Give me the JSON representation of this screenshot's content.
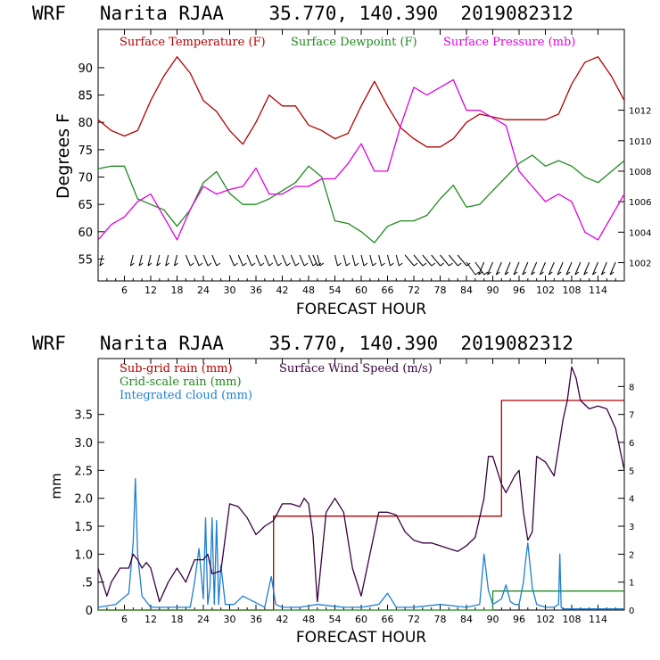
{
  "colors": {
    "temperature": "#b00000",
    "dewpoint": "#1f8a1f",
    "pressure": "#e000e0",
    "wind": "#3a0040",
    "subgrid": "#b00000",
    "gridscale": "#1f8a1f",
    "cloud": "#1e7fd0",
    "axis": "#000000"
  },
  "chart_data": [
    {
      "type": "line",
      "title": "WRF   Narita RJAA    35.770, 140.390  2019082312",
      "xlabel": "FORECAST HOUR",
      "ylabel": "Degrees F",
      "xlim": [
        0,
        120
      ],
      "ylim": [
        51,
        97
      ],
      "ylim_right": [
        1000.8,
        1017.3
      ],
      "x_ticks": [
        6,
        12,
        18,
        24,
        30,
        36,
        42,
        48,
        54,
        60,
        66,
        72,
        78,
        84,
        90,
        96,
        102,
        108,
        114
      ],
      "x_tick_labels": [
        "6",
        "12",
        "18",
        "24",
        "30",
        "36",
        "42",
        "48",
        "54",
        "60",
        "66",
        "72",
        "78",
        "84",
        "90",
        "96",
        "102",
        "108",
        "114"
      ],
      "y_ticks": [
        55,
        60,
        65,
        70,
        75,
        80,
        85,
        90
      ],
      "y_tick_labels": [
        "55",
        "60",
        "65",
        "70",
        "75",
        "80",
        "85",
        "90"
      ],
      "y2_ticks": [
        1002,
        1004,
        1006,
        1008,
        1010,
        1012
      ],
      "y2_tick_labels": [
        "1002",
        "1004",
        "1006",
        "1008",
        "1010",
        "1012"
      ],
      "legend": [
        "Surface Temperature (F)",
        "Surface Dewpoint (F)",
        "Surface Pressure (mb)"
      ],
      "series": [
        {
          "name": "Surface Temperature (F)",
          "axis": "left",
          "x": [
            0,
            3,
            6,
            9,
            12,
            15,
            18,
            21,
            24,
            27,
            30,
            33,
            36,
            39,
            42,
            45,
            48,
            51,
            54,
            57,
            60,
            63,
            66,
            69,
            72,
            75,
            78,
            81,
            84,
            87,
            90,
            93,
            96,
            99,
            102,
            105,
            108,
            111,
            114,
            117,
            120
          ],
          "values": [
            80.5,
            78.5,
            77.5,
            78.5,
            84,
            88.5,
            92,
            89,
            84,
            82,
            78.5,
            76,
            80,
            85,
            83,
            83,
            79.5,
            78.5,
            77,
            78,
            83,
            87.5,
            83,
            79,
            77,
            75.5,
            75.5,
            77,
            80,
            81.5,
            81,
            80.5,
            80.5,
            80.5,
            80.5,
            81.5,
            87,
            91,
            92,
            88.5,
            84
          ]
        },
        {
          "name": "Surface Dewpoint (F)",
          "axis": "left",
          "x": [
            0,
            3,
            6,
            9,
            12,
            15,
            18,
            21,
            24,
            27,
            30,
            33,
            36,
            39,
            42,
            45,
            48,
            51,
            54,
            57,
            60,
            63,
            66,
            69,
            72,
            75,
            78,
            81,
            84,
            87,
            90,
            93,
            96,
            99,
            102,
            105,
            108,
            111,
            114,
            117,
            120
          ],
          "values": [
            71.5,
            72,
            72,
            66,
            65,
            64,
            61,
            64,
            69,
            71,
            67,
            65,
            65,
            66,
            67.5,
            69,
            72,
            70,
            62,
            61.5,
            60,
            58,
            61,
            62,
            62,
            63,
            66,
            68.5,
            64.5,
            65,
            67.5,
            70,
            72.5,
            74,
            72,
            73,
            72,
            70,
            69,
            71,
            73
          ]
        },
        {
          "name": "Surface Pressure (mb)",
          "axis": "right",
          "x": [
            0,
            3,
            6,
            9,
            12,
            15,
            18,
            21,
            24,
            27,
            30,
            33,
            36,
            39,
            42,
            45,
            48,
            51,
            54,
            57,
            60,
            63,
            66,
            69,
            72,
            75,
            78,
            81,
            84,
            87,
            90,
            93,
            96,
            99,
            102,
            105,
            108,
            111,
            114,
            117,
            120
          ],
          "values": [
            1003.5,
            1004.5,
            1005,
            1006,
            1006.5,
            1005,
            1003.5,
            1005.5,
            1007,
            1006.5,
            1006.8,
            1007,
            1008.2,
            1006.5,
            1006.5,
            1007,
            1007,
            1007.5,
            1007.5,
            1008.5,
            1009.8,
            1008,
            1008,
            1011,
            1013.5,
            1013,
            1013.5,
            1014,
            1012,
            1012,
            1011.5,
            1011,
            1008,
            1007,
            1006,
            1006.5,
            1006,
            1004,
            1003.5,
            1005,
            1006.5
          ]
        }
      ],
      "wind_barbs_hours": [
        1,
        8,
        10,
        12,
        14,
        16,
        18,
        20,
        22,
        24,
        26,
        30,
        32,
        34,
        36,
        38,
        40,
        42,
        44,
        46,
        48,
        49,
        50,
        54,
        56,
        58,
        60,
        62,
        64,
        66,
        68,
        70,
        72,
        74,
        76,
        78,
        80,
        82,
        84,
        86,
        88,
        90,
        92,
        94,
        96,
        98,
        100,
        102,
        104,
        106,
        108,
        110,
        112,
        114,
        116,
        118
      ]
    },
    {
      "type": "line",
      "title": "WRF   Narita RJAA    35.770, 140.390  2019082312",
      "xlabel": "FORECAST HOUR",
      "ylabel": "mm",
      "xlim": [
        0,
        120
      ],
      "ylim": [
        0,
        4.5
      ],
      "ylim_right": [
        0,
        9
      ],
      "x_ticks": [
        6,
        12,
        18,
        24,
        30,
        36,
        42,
        48,
        54,
        60,
        66,
        72,
        78,
        84,
        90,
        96,
        102,
        108,
        114
      ],
      "x_tick_labels": [
        "6",
        "12",
        "18",
        "24",
        "30",
        "36",
        "42",
        "48",
        "54",
        "60",
        "66",
        "72",
        "78",
        "84",
        "90",
        "96",
        "102",
        "108",
        "114"
      ],
      "y_ticks": [
        0,
        0.5,
        1,
        1.5,
        2,
        2.5,
        3,
        3.5
      ],
      "y_tick_labels": [
        "0",
        ".5",
        "1.0",
        "1.5",
        "2.0",
        "2.5",
        "3.0",
        "3.5"
      ],
      "y2_ticks": [
        0,
        1,
        2,
        3,
        4,
        5,
        6,
        7,
        8
      ],
      "y2_tick_labels": [
        "0",
        "1",
        "2",
        "3",
        "4",
        "5",
        "6",
        "7",
        "8"
      ],
      "legend": [
        "Sub-grid rain (mm)",
        "Grid-scale rain (mm)",
        "Integrated cloud (mm)",
        "Surface Wind Speed (m/s)"
      ],
      "series": [
        {
          "name": "Sub-grid rain (mm)",
          "axis": "left",
          "step": true,
          "x": [
            0,
            40,
            40,
            92,
            92,
            120
          ],
          "values": [
            0,
            0,
            1.68,
            1.68,
            3.75,
            3.75
          ]
        },
        {
          "name": "Grid-scale rain (mm)",
          "axis": "left",
          "step": true,
          "x": [
            0,
            90,
            90,
            120
          ],
          "values": [
            0,
            0,
            0.34,
            0.34
          ]
        },
        {
          "name": "Integrated cloud (mm)",
          "axis": "left",
          "x": [
            0,
            4,
            7,
            8,
            8.5,
            9,
            10,
            12,
            16,
            21,
            22,
            23,
            24,
            24.5,
            25,
            25.5,
            26,
            26.5,
            27,
            27.5,
            28,
            29,
            31,
            33,
            38,
            39.5,
            40.5,
            42,
            46,
            50,
            56,
            60,
            64,
            66,
            68,
            72,
            78,
            84,
            87,
            88,
            89,
            90,
            92,
            93,
            94,
            95,
            96,
            97,
            97.5,
            98,
            99,
            100,
            102,
            104,
            105,
            105.3,
            105.6,
            106,
            120
          ],
          "values": [
            0.05,
            0.1,
            0.3,
            1.2,
            2.35,
            1.0,
            0.25,
            0.05,
            0.05,
            0.05,
            0.5,
            1.1,
            0.2,
            1.65,
            0.1,
            0.4,
            1.65,
            0.1,
            1.6,
            0.1,
            0.8,
            0.1,
            0.1,
            0.25,
            0.05,
            0.6,
            0.1,
            0.05,
            0.05,
            0.1,
            0.05,
            0.05,
            0.1,
            0.3,
            0.05,
            0.05,
            0.1,
            0.05,
            0.1,
            1.0,
            0.35,
            0.1,
            0.2,
            0.45,
            0.15,
            0.1,
            0.1,
            0.5,
            0.9,
            1.2,
            0.4,
            0.1,
            0.05,
            0.05,
            0.1,
            1.0,
            0.05,
            0.02,
            0.02
          ]
        },
        {
          "name": "Surface Wind Speed (m/s)",
          "axis": "right",
          "x": [
            0,
            2,
            3,
            5,
            7,
            8,
            9,
            10,
            11,
            12,
            14,
            16,
            18,
            20,
            22,
            24,
            25,
            26,
            28,
            30,
            32,
            34,
            36,
            38,
            40,
            42,
            44,
            46,
            47,
            48,
            49,
            50,
            52,
            54,
            56,
            58,
            60,
            62,
            64,
            66,
            68,
            70,
            72,
            74,
            76,
            78,
            80,
            82,
            84,
            86,
            88,
            89,
            90,
            91,
            92,
            93,
            94,
            95,
            96,
            97,
            98,
            99,
            100,
            102,
            104,
            105,
            106,
            107,
            108,
            109,
            110,
            112,
            114,
            116,
            118,
            120
          ],
          "values": [
            1.5,
            0.5,
            1,
            1.5,
            1.5,
            2,
            1.8,
            1.5,
            1.7,
            1.5,
            0.3,
            1,
            1.5,
            1,
            1.8,
            1.8,
            2,
            1.3,
            1.4,
            3.8,
            3.7,
            3.3,
            2.7,
            3,
            3.2,
            3.8,
            3.8,
            3.7,
            4,
            3.8,
            2.7,
            0.3,
            3.5,
            4,
            3.5,
            1.5,
            0.5,
            2,
            3.5,
            3.5,
            3.4,
            2.8,
            2.5,
            2.4,
            2.4,
            2.3,
            2.2,
            2.1,
            2.3,
            2.6,
            4,
            5.5,
            5.5,
            5,
            4.5,
            4.2,
            4.5,
            4.8,
            5,
            3.5,
            2.5,
            2.8,
            5.5,
            5.3,
            4.8,
            5.8,
            6.8,
            7.5,
            8.7,
            8.3,
            7.5,
            7.2,
            7.3,
            7.2,
            6.5,
            5
          ]
        }
      ]
    }
  ]
}
